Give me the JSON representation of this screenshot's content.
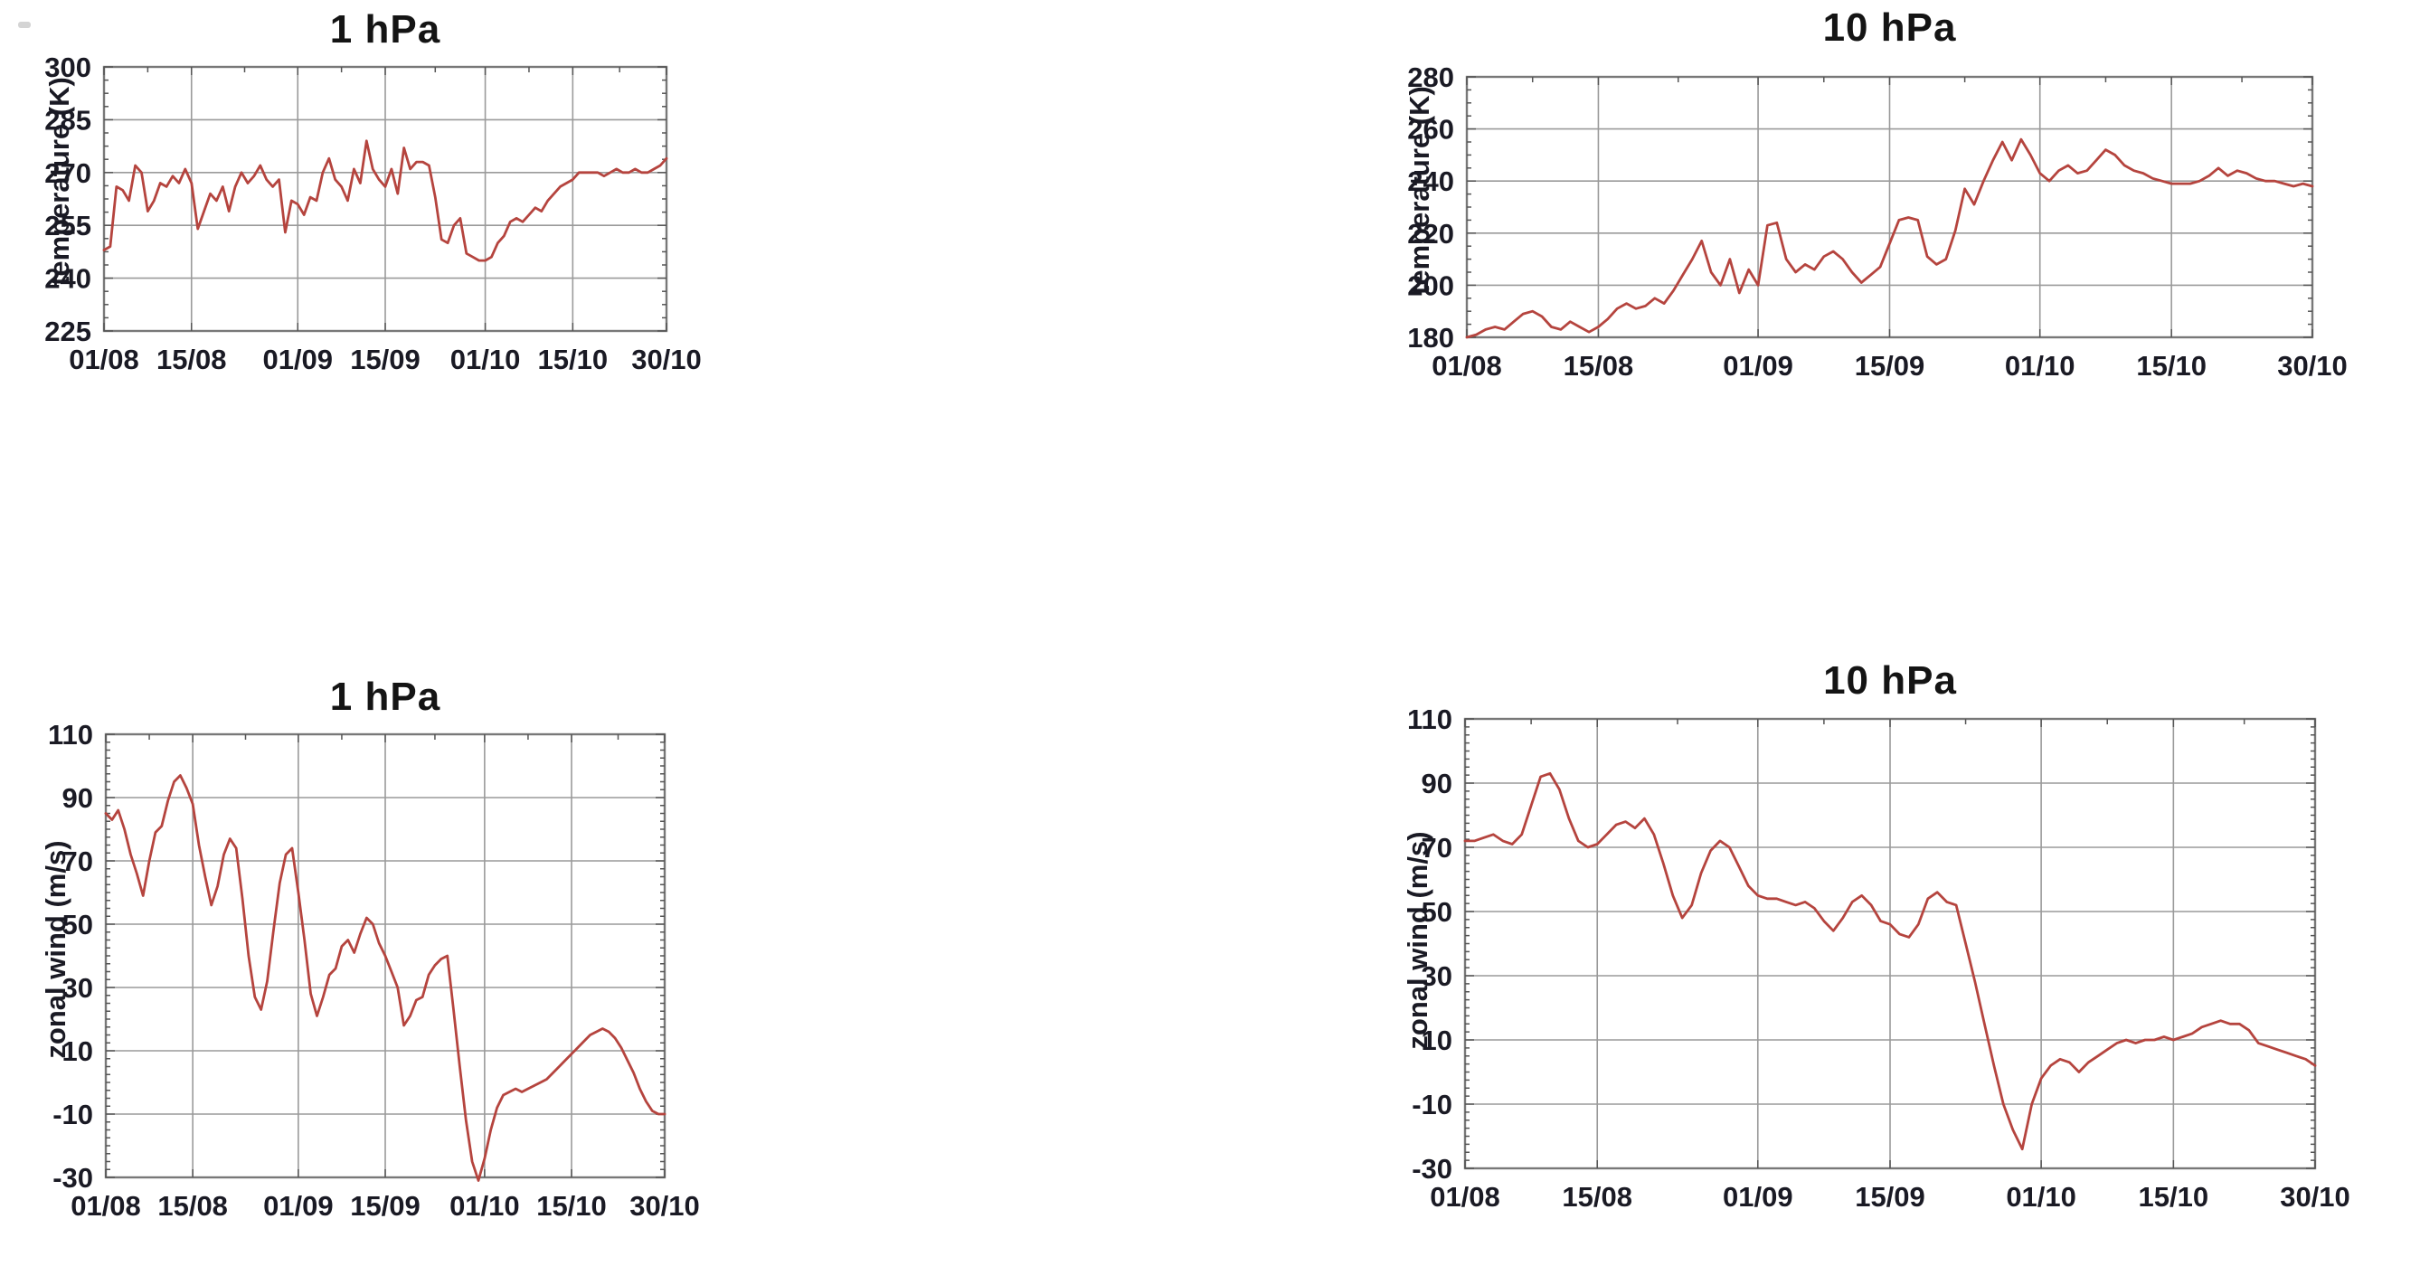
{
  "figure": {
    "description": "Four time-series line charts of stratospheric temperature and zonal wind at 1 hPa and 10 hPa from 01/08 to 30/10",
    "line_color": "#b5443e",
    "grid_color": "#9a9a9a",
    "axis_color": "#787878",
    "text_color": "#1a1a24"
  },
  "chart_data": [
    {
      "type": "line",
      "title": "1 hPa",
      "ylabel": "temperature (K)",
      "xlabel": "",
      "ylim": [
        225,
        300
      ],
      "yticks": [
        225,
        240,
        255,
        270,
        285,
        300
      ],
      "xtick_labels": [
        "01/08",
        "15/08",
        "01/09",
        "15/09",
        "01/10",
        "15/10",
        "30/10"
      ],
      "xtick_days": [
        0,
        14,
        31,
        45,
        61,
        75,
        90
      ],
      "n_days": 91,
      "grid": true,
      "legend": "none",
      "values": [
        248,
        249,
        266,
        265,
        262,
        272,
        270,
        259,
        262,
        267,
        266,
        269,
        267,
        271,
        267,
        254,
        259,
        264,
        262,
        266,
        259,
        266,
        270,
        267,
        269,
        272,
        268,
        266,
        268,
        253,
        262,
        261,
        258,
        263,
        262,
        270,
        274,
        268,
        266,
        262,
        271,
        267,
        279,
        271,
        268,
        266,
        271,
        264,
        277,
        271,
        273,
        273,
        272,
        263,
        251,
        250,
        255,
        257,
        247,
        246,
        245,
        245,
        246,
        250,
        252,
        256,
        257,
        256,
        258,
        260,
        259,
        262,
        264,
        266,
        267,
        268,
        270,
        270,
        270,
        270,
        269,
        270,
        271,
        270,
        270,
        271,
        270,
        270,
        271,
        272,
        274
      ]
    },
    {
      "type": "line",
      "title": "10 hPa",
      "ylabel": "temperature (K)",
      "xlabel": "",
      "ylim": [
        180,
        280
      ],
      "yticks": [
        180,
        200,
        220,
        240,
        260,
        280
      ],
      "xtick_labels": [
        "01/08",
        "15/08",
        "01/09",
        "15/09",
        "01/10",
        "15/10",
        "30/10"
      ],
      "xtick_days": [
        0,
        14,
        31,
        45,
        61,
        75,
        90
      ],
      "n_days": 91,
      "grid": true,
      "legend": "none",
      "values": [
        180,
        181,
        183,
        184,
        183,
        186,
        189,
        190,
        188,
        184,
        183,
        186,
        184,
        182,
        184,
        187,
        191,
        193,
        191,
        192,
        195,
        193,
        198,
        204,
        210,
        217,
        205,
        200,
        210,
        197,
        206,
        200,
        223,
        224,
        210,
        205,
        208,
        206,
        211,
        213,
        210,
        205,
        201,
        204,
        207,
        216,
        225,
        226,
        225,
        211,
        208,
        210,
        221,
        237,
        231,
        240,
        248,
        255,
        248,
        256,
        250,
        243,
        240,
        244,
        246,
        243,
        244,
        248,
        252,
        250,
        246,
        244,
        243,
        241,
        240,
        239,
        239,
        239,
        240,
        242,
        245,
        242,
        244,
        243,
        241,
        240,
        240,
        239,
        238,
        239,
        238
      ]
    },
    {
      "type": "line",
      "title": "1 hPa",
      "ylabel": "zonal wind (m/s)",
      "xlabel": "",
      "ylim": [
        -30,
        110
      ],
      "yticks": [
        -30,
        -10,
        10,
        30,
        50,
        70,
        90,
        110
      ],
      "xtick_labels": [
        "01/08",
        "15/08",
        "01/09",
        "15/09",
        "01/10",
        "15/10",
        "30/10"
      ],
      "xtick_days": [
        0,
        14,
        31,
        45,
        61,
        75,
        90
      ],
      "n_days": 91,
      "grid": true,
      "legend": "none",
      "values": [
        85,
        83,
        86,
        80,
        72,
        66,
        59,
        70,
        79,
        81,
        89,
        95,
        97,
        93,
        88,
        75,
        65,
        56,
        62,
        72,
        77,
        74,
        58,
        40,
        27,
        23,
        32,
        48,
        63,
        72,
        74,
        60,
        45,
        28,
        21,
        27,
        34,
        36,
        43,
        45,
        41,
        47,
        52,
        50,
        44,
        40,
        35,
        30,
        18,
        21,
        26,
        27,
        34,
        37,
        39,
        40,
        23,
        5,
        -12,
        -25,
        -31,
        -24,
        -15,
        -8,
        -4,
        -3,
        -2,
        -3,
        -2,
        -1,
        0,
        1,
        3,
        5,
        7,
        9,
        11,
        13,
        15,
        16,
        17,
        16,
        14,
        11,
        7,
        3,
        -2,
        -6,
        -9,
        -10,
        -10
      ]
    },
    {
      "type": "line",
      "title": "10 hPa",
      "ylabel": "zonal wind (m/s)",
      "xlabel": "",
      "ylim": [
        -30,
        110
      ],
      "yticks": [
        -30,
        -10,
        10,
        30,
        50,
        70,
        90,
        110
      ],
      "xtick_labels": [
        "01/08",
        "15/08",
        "01/09",
        "15/09",
        "01/10",
        "15/10",
        "30/10"
      ],
      "xtick_days": [
        0,
        14,
        31,
        45,
        61,
        75,
        90
      ],
      "n_days": 91,
      "grid": true,
      "legend": "none",
      "values": [
        72,
        72,
        73,
        74,
        72,
        71,
        74,
        83,
        92,
        93,
        88,
        79,
        72,
        70,
        71,
        74,
        77,
        78,
        76,
        79,
        74,
        65,
        55,
        48,
        52,
        62,
        69,
        72,
        70,
        64,
        58,
        55,
        54,
        54,
        53,
        52,
        53,
        51,
        47,
        44,
        48,
        53,
        55,
        52,
        47,
        46,
        43,
        42,
        46,
        54,
        56,
        53,
        52,
        40,
        28,
        15,
        2,
        -10,
        -18,
        -24,
        -10,
        -2,
        2,
        4,
        3,
        0,
        3,
        5,
        7,
        9,
        10,
        9,
        10,
        10,
        11,
        10,
        11,
        12,
        14,
        15,
        16,
        15,
        15,
        13,
        9,
        8,
        7,
        6,
        5,
        4,
        2
      ]
    }
  ]
}
